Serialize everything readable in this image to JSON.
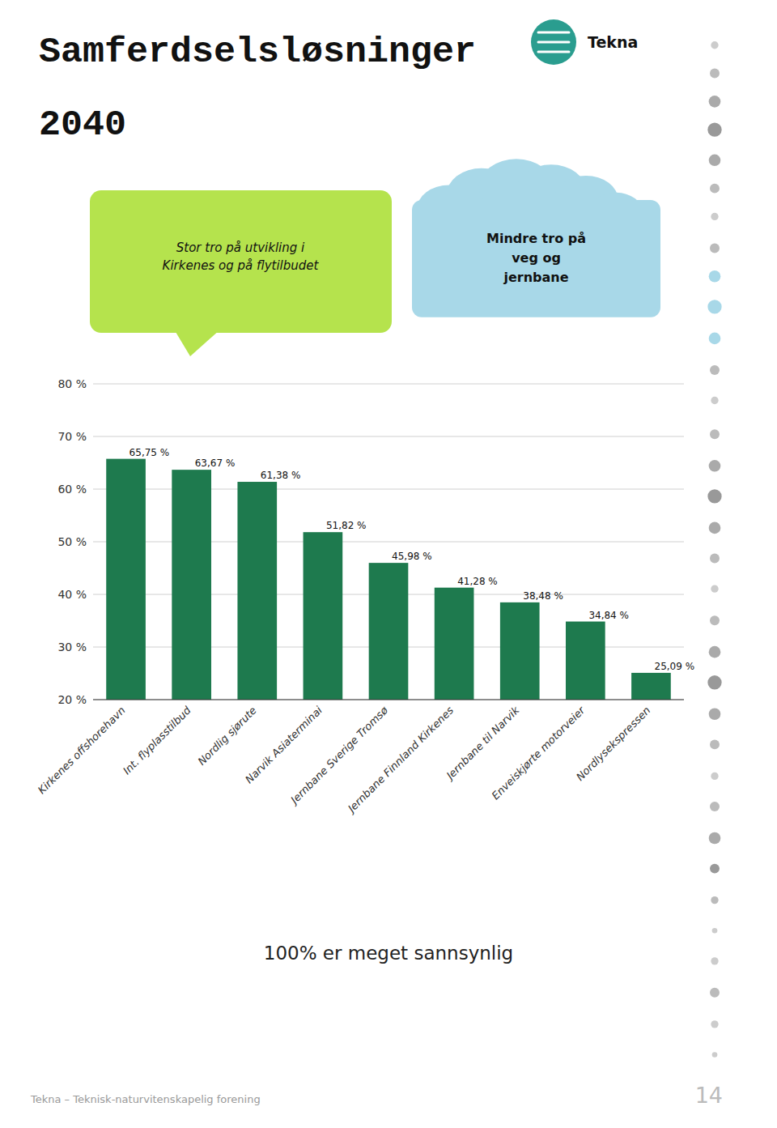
{
  "chart_data": {
    "type": "bar",
    "title": "Samferdselsløsninger",
    "subtitle": "2040",
    "categories": [
      "Kirkenes offshorehavn",
      "Int. flyplasstilbud",
      "Nordlig sjørute",
      "Narvik Asiaterminai",
      "Jernbane Sverige Tromsø",
      "Jernbane Finnland Kirkenes",
      "Jernbane til Narvik",
      "Enveiskjørte motorveier",
      "Nordlysekspressen"
    ],
    "values": [
      65.75,
      63.67,
      61.38,
      51.82,
      45.98,
      41.28,
      38.48,
      34.84,
      25.09
    ],
    "value_labels": [
      "65,75 %",
      "63,67 %",
      "61,38 %",
      "51,82 %",
      "45,98 %",
      "41,28 %",
      "38,48 %",
      "34,84 %",
      "25,09 %"
    ],
    "data_labels": true,
    "color": "#1e7a4e",
    "ylim": [
      20,
      80
    ],
    "yticks": [
      {
        "value": 20,
        "label": "20 %"
      },
      {
        "value": 30,
        "label": "30 %"
      },
      {
        "value": 40,
        "label": "40 %"
      },
      {
        "value": 50,
        "label": "50 %"
      },
      {
        "value": 60,
        "label": "60 %"
      },
      {
        "value": 70,
        "label": "70 %"
      },
      {
        "value": 80,
        "label": "80 %"
      }
    ],
    "grid": true,
    "annotations": [
      "Stor tro på utvikling i\nKirkenes og på flytilbudet",
      "Mindre tro på\nveg og\njernbane",
      "100% er meget sannsynlig",
      "Tekna",
      "Tekna – Teknisk-naturvitenskapelig forening",
      "14"
    ]
  }
}
